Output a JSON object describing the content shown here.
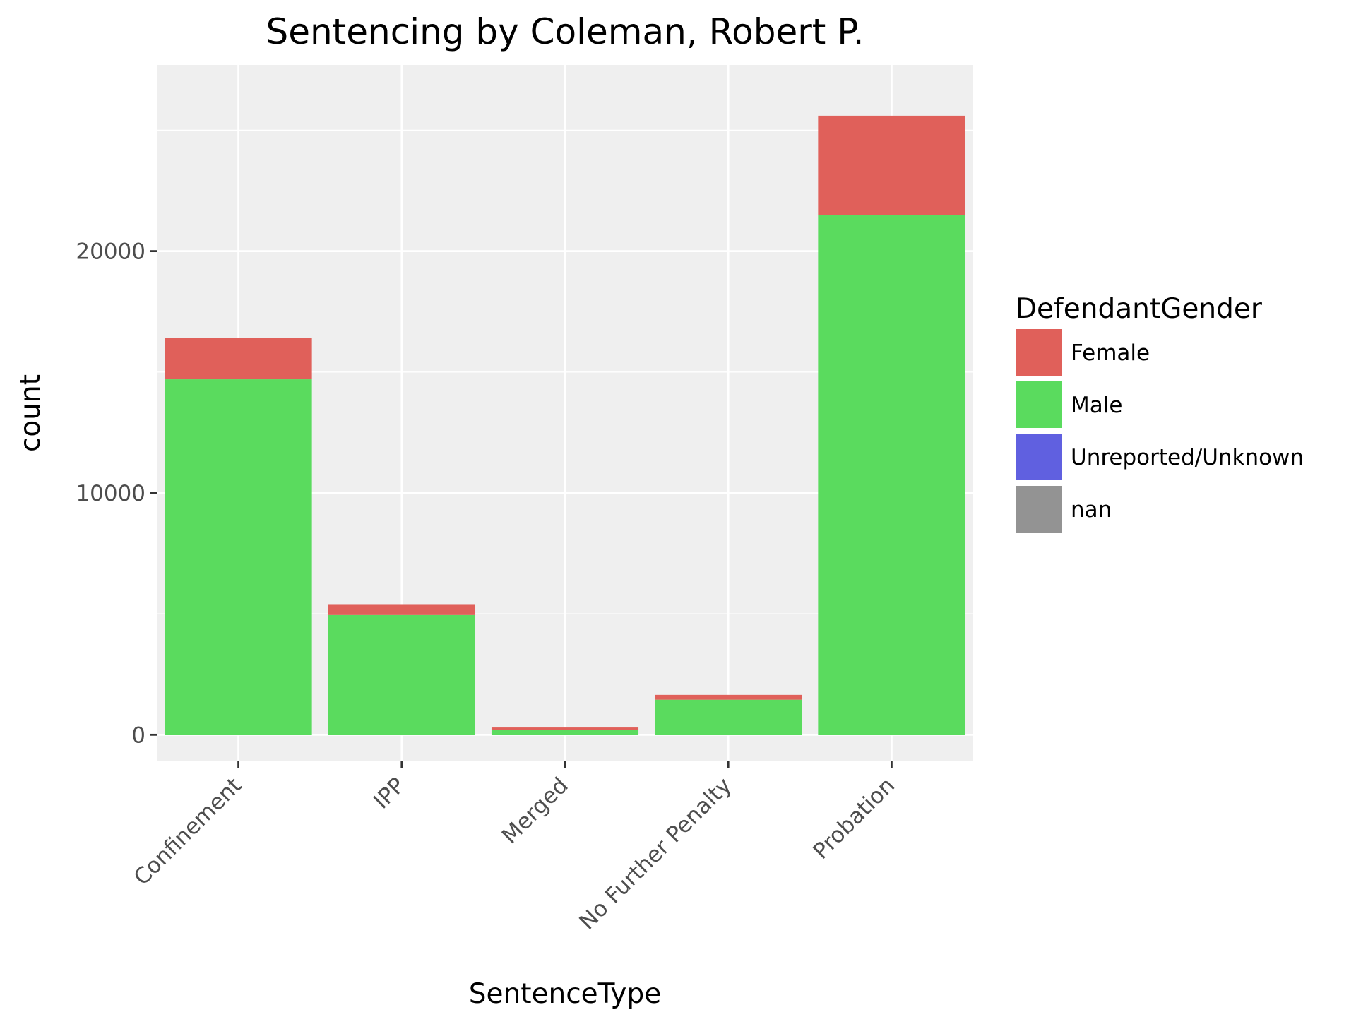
{
  "chart_data": {
    "type": "bar",
    "stacked": true,
    "title": "Sentencing by Coleman, Robert P.",
    "xlabel": "SentenceType",
    "ylabel": "count",
    "categories": [
      "Confinement",
      "IPP",
      "Merged",
      "No Further Penalty",
      "Probation"
    ],
    "series": [
      {
        "name": "Female",
        "color": "#e0605a",
        "values": [
          1700,
          450,
          100,
          200,
          4100
        ]
      },
      {
        "name": "Male",
        "color": "#5adb5e",
        "values": [
          14700,
          4950,
          200,
          1450,
          21500
        ]
      },
      {
        "name": "Unreported/Unknown",
        "color": "#6060e0",
        "values": [
          0,
          0,
          0,
          0,
          0
        ]
      },
      {
        "name": "nan",
        "color": "#939393",
        "values": [
          0,
          0,
          0,
          0,
          0
        ]
      }
    ],
    "stack_order_bottom_to_top": [
      "nan",
      "Unreported/Unknown",
      "Male",
      "Female"
    ],
    "ylim": [
      -1100,
      27700
    ],
    "yticks": [
      0,
      10000,
      20000
    ],
    "ytick_labels": [
      "0",
      "10000",
      "20000"
    ],
    "y_minor_gridlines": [
      5000,
      15000,
      25000
    ],
    "grid": true,
    "panel_background": "#efefef",
    "grid_color": "#ffffff",
    "legend": {
      "title": "DefendantGender",
      "position": "right",
      "entries": [
        "Female",
        "Male",
        "Unreported/Unknown",
        "nan"
      ]
    }
  }
}
